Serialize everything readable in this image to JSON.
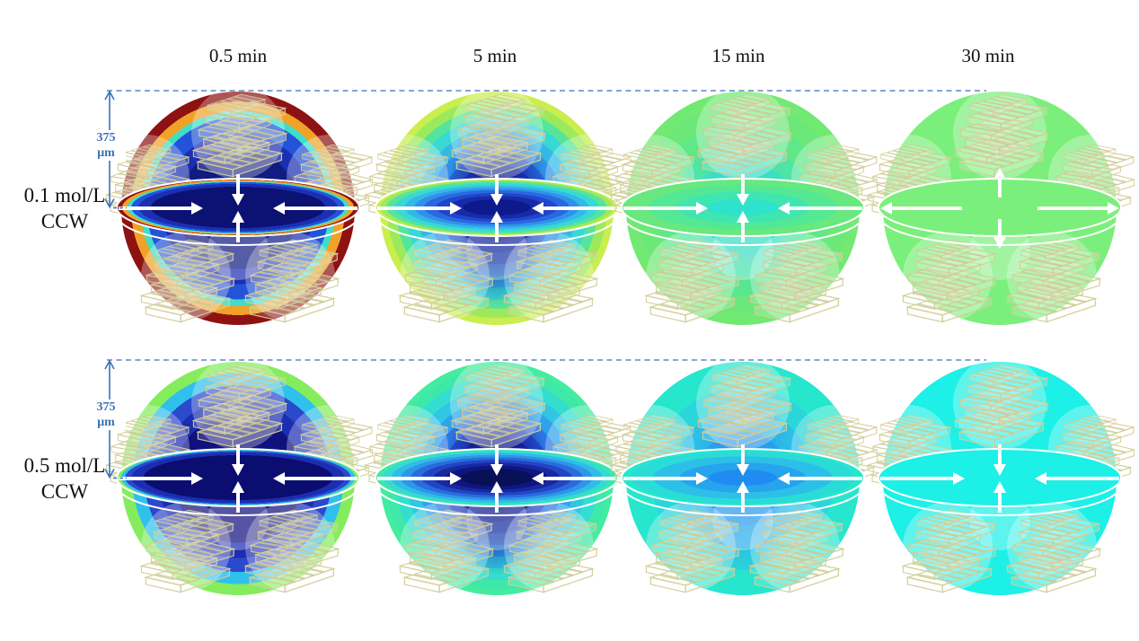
{
  "figure": {
    "columns": [
      "0.5 min",
      "5 min",
      "15 min",
      "30 min"
    ],
    "rows": [
      {
        "concentration": "0.1 mol/L",
        "mode": "CCW",
        "scale": {
          "value": "375",
          "unit": "μm"
        },
        "spheres": [
          {
            "time": "0.5 min",
            "arrows": "inward",
            "sphere_bands": [
              [
                "#101c82",
                0.52
              ],
              [
                "#1b2fb2",
                0.65
              ],
              [
                "#2353d8",
                0.78
              ],
              [
                "#40ddc8",
                0.835
              ],
              [
                "#f0a228",
                0.915
              ],
              [
                "#8e1212",
                1
              ]
            ],
            "ellipse_bands": [
              [
                "#0c1174",
                0.72
              ],
              [
                "#1b2fb2",
                0.82
              ],
              [
                "#2353d8",
                0.88
              ],
              [
                "#40ddc8",
                0.915
              ],
              [
                "#f0a228",
                0.955
              ],
              [
                "#8e1212",
                1
              ]
            ]
          },
          {
            "time": "5 min",
            "arrows": "inward",
            "lobe": {
              "color": "#0d1680",
              "opacity": 0.9
            },
            "sphere_bands": [
              [
                "#0d1680",
                0.18
              ],
              [
                "#182aa8",
                0.28
              ],
              [
                "#2145cc",
                0.38
              ],
              [
                "#2a68e0",
                0.48
              ],
              [
                "#2f92e8",
                0.58
              ],
              [
                "#33b8e8",
                0.68
              ],
              [
                "#38d8d4",
                0.78
              ],
              [
                "#55e49c",
                0.86
              ],
              [
                "#9cea5c",
                0.94
              ],
              [
                "#c9ee4e",
                1
              ]
            ],
            "ellipse_bands": [
              [
                "#0c1a8c",
                0.28
              ],
              [
                "#182aa8",
                0.4
              ],
              [
                "#2145cc",
                0.5
              ],
              [
                "#2a68e0",
                0.6
              ],
              [
                "#2f92e8",
                0.68
              ],
              [
                "#33b8e8",
                0.76
              ],
              [
                "#38d8d4",
                0.84
              ],
              [
                "#55e49c",
                0.91
              ],
              [
                "#9cea5c",
                0.96
              ],
              [
                "#c9ee4e",
                1
              ]
            ]
          },
          {
            "time": "15 min",
            "arrows": "inward",
            "lobe": {
              "color": "#30d8d4",
              "opacity": 0.55
            },
            "sphere_bands": [
              [
                "#34d8d4",
                0.25
              ],
              [
                "#40e0bc",
                0.42
              ],
              [
                "#50e5a2",
                0.58
              ],
              [
                "#60e788",
                0.75
              ],
              [
                "#6ce878",
                0.9
              ],
              [
                "#72e972",
                1
              ]
            ],
            "ellipse_bands": [
              [
                "#2fe2cc",
                0.3
              ],
              [
                "#40e6b0",
                0.55
              ],
              [
                "#54e894",
                0.78
              ],
              [
                "#68e87e",
                1
              ]
            ]
          },
          {
            "time": "30 min",
            "arrows": "outward",
            "sphere_bands": [
              [
                "#7bef7b",
                1
              ]
            ],
            "ellipse_bands": [
              [
                "#7bef7b",
                1
              ]
            ]
          }
        ]
      },
      {
        "concentration": "0.5 mol/L",
        "mode": "CCW",
        "scale": {
          "value": "375",
          "unit": "μm"
        },
        "spheres": [
          {
            "time": "0.5 min",
            "arrows": "inward",
            "sphere_bands": [
              [
                "#10107e",
                0.55
              ],
              [
                "#1b2db0",
                0.68
              ],
              [
                "#2b49cc",
                0.8
              ],
              [
                "#2fc0ec",
                0.905
              ],
              [
                "#85ec5e",
                1
              ]
            ],
            "ellipse_bands": [
              [
                "#0b0d70",
                0.78
              ],
              [
                "#1b2db0",
                0.88
              ],
              [
                "#2b49cc",
                0.93
              ],
              [
                "#2fc0ec",
                0.965
              ],
              [
                "#85ec5e",
                1
              ]
            ]
          },
          {
            "time": "5 min",
            "arrows": "inward",
            "lobe": {
              "color": "#0a1078",
              "opacity": 0.9
            },
            "sphere_bands": [
              [
                "#0a1078",
                0.16
              ],
              [
                "#131c96",
                0.27
              ],
              [
                "#1c30b6",
                0.37
              ],
              [
                "#2450d4",
                0.47
              ],
              [
                "#2b78e4",
                0.57
              ],
              [
                "#2ea2ec",
                0.67
              ],
              [
                "#30c6e4",
                0.77
              ],
              [
                "#33ded0",
                0.87
              ],
              [
                "#3ee8a8",
                0.95
              ],
              [
                "#44eca0",
                1
              ]
            ],
            "ellipse_bands": [
              [
                "#081058",
                0.3
              ],
              [
                "#0f1682",
                0.42
              ],
              [
                "#18289e",
                0.52
              ],
              [
                "#2145c4",
                0.62
              ],
              [
                "#2a6cdc",
                0.71
              ],
              [
                "#2e96e8",
                0.79
              ],
              [
                "#30bce8",
                0.87
              ],
              [
                "#34dcd0",
                0.94
              ],
              [
                "#3ee8a8",
                1
              ]
            ]
          },
          {
            "time": "15 min",
            "arrows": "inward",
            "lobe": {
              "color": "#2688ee",
              "opacity": 0.65
            },
            "sphere_bands": [
              [
                "#2690ee",
                0.2
              ],
              [
                "#2aa8ec",
                0.4
              ],
              [
                "#2cc0e8",
                0.6
              ],
              [
                "#2ad6da",
                0.78
              ],
              [
                "#26e6ce",
                1
              ]
            ],
            "ellipse_bands": [
              [
                "#1e8cf0",
                0.28
              ],
              [
                "#26a4ee",
                0.52
              ],
              [
                "#2cc0e8",
                0.74
              ],
              [
                "#2adcd6",
                0.92
              ],
              [
                "#26e6ce",
                1
              ]
            ]
          },
          {
            "time": "30 min",
            "arrows": "inward",
            "sphere_bands": [
              [
                "#1df0e6",
                1
              ]
            ],
            "ellipse_bands": [
              [
                "#1df0e6",
                1
              ]
            ]
          }
        ]
      }
    ],
    "palette": {
      "annotation_blue": "#3a72b8",
      "dashed_line": "#5b87c5",
      "arrow_white": "#ffffff",
      "chip_outline": "#d2cd96",
      "background": "#ffffff"
    }
  }
}
